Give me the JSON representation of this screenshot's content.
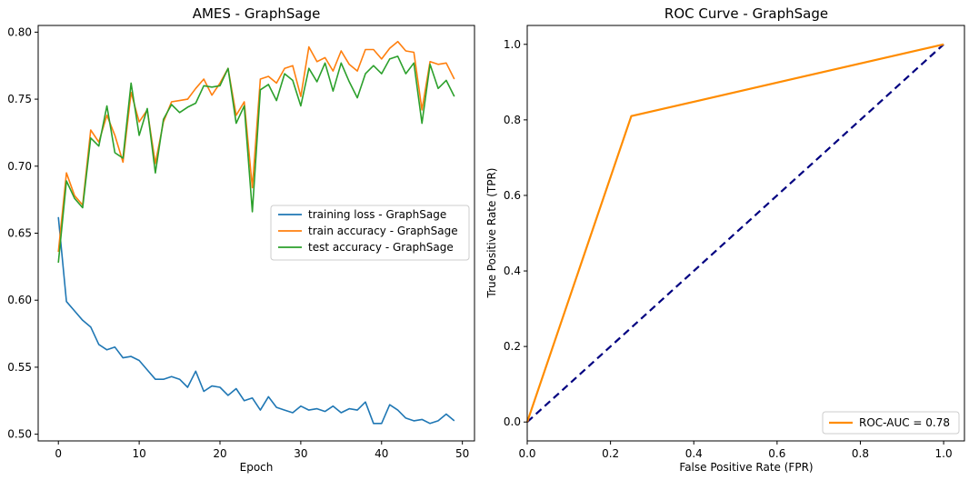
{
  "chart_data": [
    {
      "type": "line",
      "title": "AMES - GraphSage",
      "xlabel": "Epoch",
      "ylabel": "",
      "xlim": [
        -2.5,
        51.5
      ],
      "ylim": [
        0.495,
        0.805
      ],
      "xticks": [
        0,
        10,
        20,
        30,
        40,
        50
      ],
      "yticks": [
        0.5,
        0.55,
        0.6,
        0.65,
        0.7,
        0.75,
        0.8
      ],
      "xtick_labels": [
        "0",
        "10",
        "20",
        "30",
        "40",
        "50"
      ],
      "ytick_labels": [
        "0.50",
        "0.55",
        "0.60",
        "0.65",
        "0.70",
        "0.75",
        "0.80"
      ],
      "legend": "center-right",
      "x": [
        0,
        1,
        2,
        3,
        4,
        5,
        6,
        7,
        8,
        9,
        10,
        11,
        12,
        13,
        14,
        15,
        16,
        17,
        18,
        19,
        20,
        21,
        22,
        23,
        24,
        25,
        26,
        27,
        28,
        29,
        30,
        31,
        32,
        33,
        34,
        35,
        36,
        37,
        38,
        39,
        40,
        41,
        42,
        43,
        44,
        45,
        46,
        47,
        48,
        49
      ],
      "series": [
        {
          "name": "training loss - GraphSage",
          "color": "#1f77b4",
          "values": [
            0.662,
            0.599,
            0.592,
            0.585,
            0.58,
            0.567,
            0.563,
            0.565,
            0.557,
            0.558,
            0.555,
            0.548,
            0.541,
            0.541,
            0.543,
            0.541,
            0.535,
            0.547,
            0.532,
            0.536,
            0.535,
            0.529,
            0.534,
            0.525,
            0.527,
            0.518,
            0.528,
            0.52,
            0.518,
            0.516,
            0.521,
            0.518,
            0.519,
            0.517,
            0.521,
            0.516,
            0.519,
            0.518,
            0.524,
            0.508,
            0.508,
            0.522,
            0.518,
            0.512,
            0.51,
            0.511,
            0.508,
            0.51,
            0.515,
            0.51
          ]
        },
        {
          "name": "train accuracy - GraphSage",
          "color": "#ff7f0e",
          "values": [
            0.636,
            0.695,
            0.678,
            0.671,
            0.727,
            0.718,
            0.738,
            0.723,
            0.703,
            0.755,
            0.733,
            0.742,
            0.702,
            0.733,
            0.748,
            0.749,
            0.75,
            0.758,
            0.765,
            0.753,
            0.762,
            0.773,
            0.738,
            0.748,
            0.684,
            0.765,
            0.767,
            0.762,
            0.773,
            0.775,
            0.752,
            0.789,
            0.778,
            0.781,
            0.771,
            0.786,
            0.776,
            0.771,
            0.787,
            0.787,
            0.78,
            0.788,
            0.793,
            0.786,
            0.785,
            0.742,
            0.778,
            0.776,
            0.777,
            0.765
          ]
        },
        {
          "name": "test accuracy - GraphSage",
          "color": "#2ca02c",
          "values": [
            0.628,
            0.689,
            0.676,
            0.669,
            0.721,
            0.715,
            0.745,
            0.71,
            0.706,
            0.762,
            0.723,
            0.743,
            0.695,
            0.735,
            0.746,
            0.74,
            0.744,
            0.747,
            0.76,
            0.759,
            0.76,
            0.773,
            0.732,
            0.745,
            0.666,
            0.757,
            0.761,
            0.749,
            0.769,
            0.764,
            0.745,
            0.773,
            0.763,
            0.777,
            0.756,
            0.777,
            0.763,
            0.751,
            0.769,
            0.775,
            0.769,
            0.78,
            0.782,
            0.769,
            0.777,
            0.732,
            0.776,
            0.758,
            0.764,
            0.752
          ]
        }
      ]
    },
    {
      "type": "line",
      "title": "ROC Curve - GraphSage",
      "xlabel": "False Positive Rate (FPR)",
      "ylabel": "True Positive Rate (TPR)",
      "xlim": [
        0,
        1.05
      ],
      "ylim": [
        -0.05,
        1.05
      ],
      "xticks": [
        0,
        0.2,
        0.4,
        0.6,
        0.8,
        1.0
      ],
      "yticks": [
        0,
        0.2,
        0.4,
        0.6,
        0.8,
        1.0
      ],
      "xtick_labels": [
        "0.0",
        "0.2",
        "0.4",
        "0.6",
        "0.8",
        "1.0"
      ],
      "ytick_labels": [
        "0.0",
        "0.2",
        "0.4",
        "0.6",
        "0.8",
        "1.0"
      ],
      "legend": "lower-right",
      "series": [
        {
          "name": "ROC-AUC = 0.78",
          "color": "#ff8c00",
          "x": [
            0,
            0.25,
            1.0
          ],
          "y": [
            0,
            0.81,
            1.0
          ]
        },
        {
          "name": "",
          "color": "#000080",
          "style": "dashed",
          "x": [
            0,
            1.0
          ],
          "y": [
            0,
            1.0
          ]
        }
      ]
    }
  ]
}
